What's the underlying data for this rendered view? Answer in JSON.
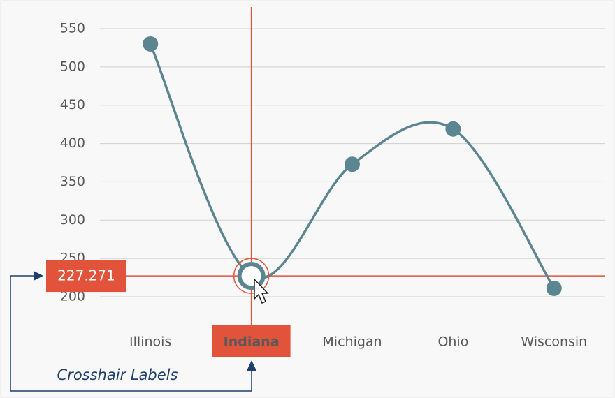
{
  "chart_data": {
    "type": "line",
    "categories": [
      "Illinois",
      "Indiana",
      "Michigan",
      "Ohio",
      "Wisconsin"
    ],
    "values": [
      530,
      227.271,
      373,
      419,
      211
    ],
    "color": "#5b8590",
    "ylim": [
      200,
      550
    ],
    "yticks": [
      200,
      250,
      300,
      350,
      400,
      450,
      500,
      550
    ],
    "grid": true,
    "crosshair_value": 227.271,
    "crosshair_color": "#e2533b",
    "annotation": "Crosshair Labels"
  }
}
